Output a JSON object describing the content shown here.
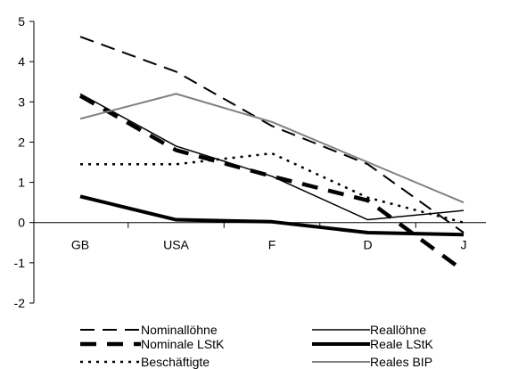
{
  "chart_data": {
    "type": "line",
    "title": "",
    "xlabel": "",
    "ylabel": "",
    "categories": [
      "GB",
      "USA",
      "F",
      "D",
      "J"
    ],
    "ylim": [
      -2,
      5
    ],
    "yticks": [
      "-2",
      "-1",
      "0",
      "1",
      "2",
      "3",
      "4",
      "5"
    ],
    "grid": false,
    "legend_position": "bottom",
    "series": [
      {
        "name": "Nominallöhne",
        "values": [
          4.62,
          3.75,
          2.4,
          1.45,
          -0.25
        ],
        "color": "#000000",
        "style": "long-dash-thin"
      },
      {
        "name": "Reallöhne",
        "values": [
          3.2,
          1.9,
          1.15,
          0.07,
          0.3
        ],
        "color": "#000000",
        "style": "solid-thin"
      },
      {
        "name": "Nominale LStK",
        "values": [
          3.15,
          1.8,
          1.15,
          0.55,
          -1.2
        ],
        "color": "#000000",
        "style": "long-dash-thick"
      },
      {
        "name": "Reale LStK",
        "values": [
          0.65,
          0.07,
          0.02,
          -0.25,
          -0.3
        ],
        "color": "#000000",
        "style": "solid-thick"
      },
      {
        "name": "Beschäftigte",
        "values": [
          1.45,
          1.45,
          1.72,
          0.62,
          0.0
        ],
        "color": "#000000",
        "style": "dotted"
      },
      {
        "name": "Reales BIP",
        "values": [
          2.58,
          3.2,
          2.5,
          1.5,
          0.5
        ],
        "color": "#808080",
        "style": "solid-gray"
      }
    ]
  }
}
